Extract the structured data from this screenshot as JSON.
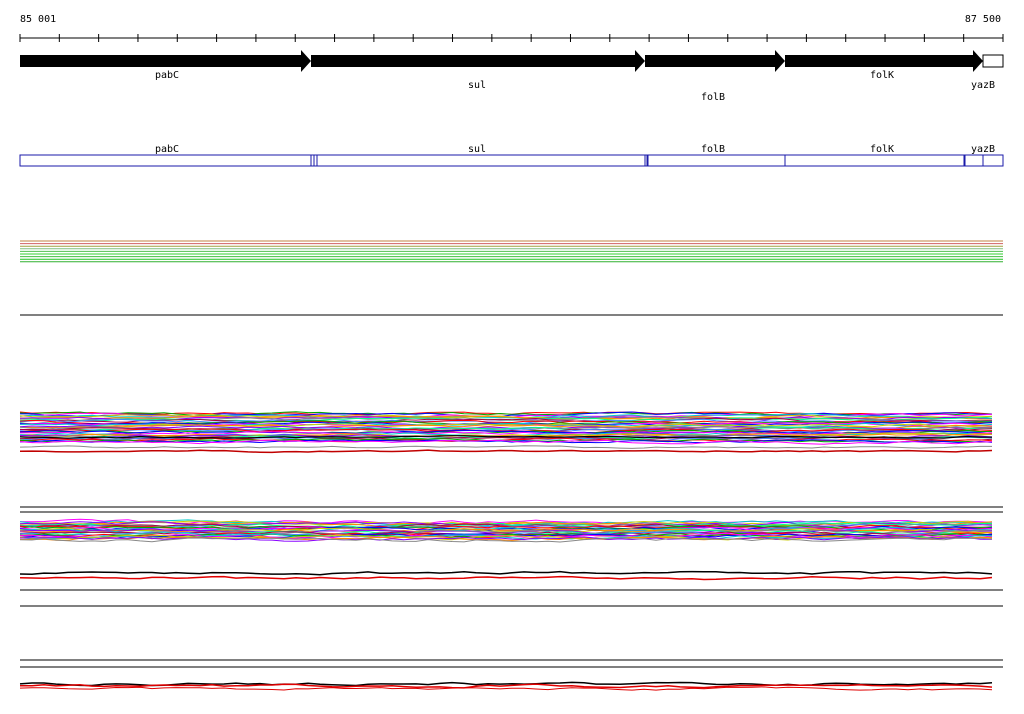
{
  "ruler": {
    "start": "85 001",
    "end": "87 500"
  },
  "gene_track": {
    "genes": [
      "pabC",
      "sul",
      "folB",
      "folK",
      "yazB"
    ]
  },
  "feature_track": {
    "labels": [
      "pabC",
      "sul",
      "folB",
      "folK",
      "yazB"
    ]
  }
}
